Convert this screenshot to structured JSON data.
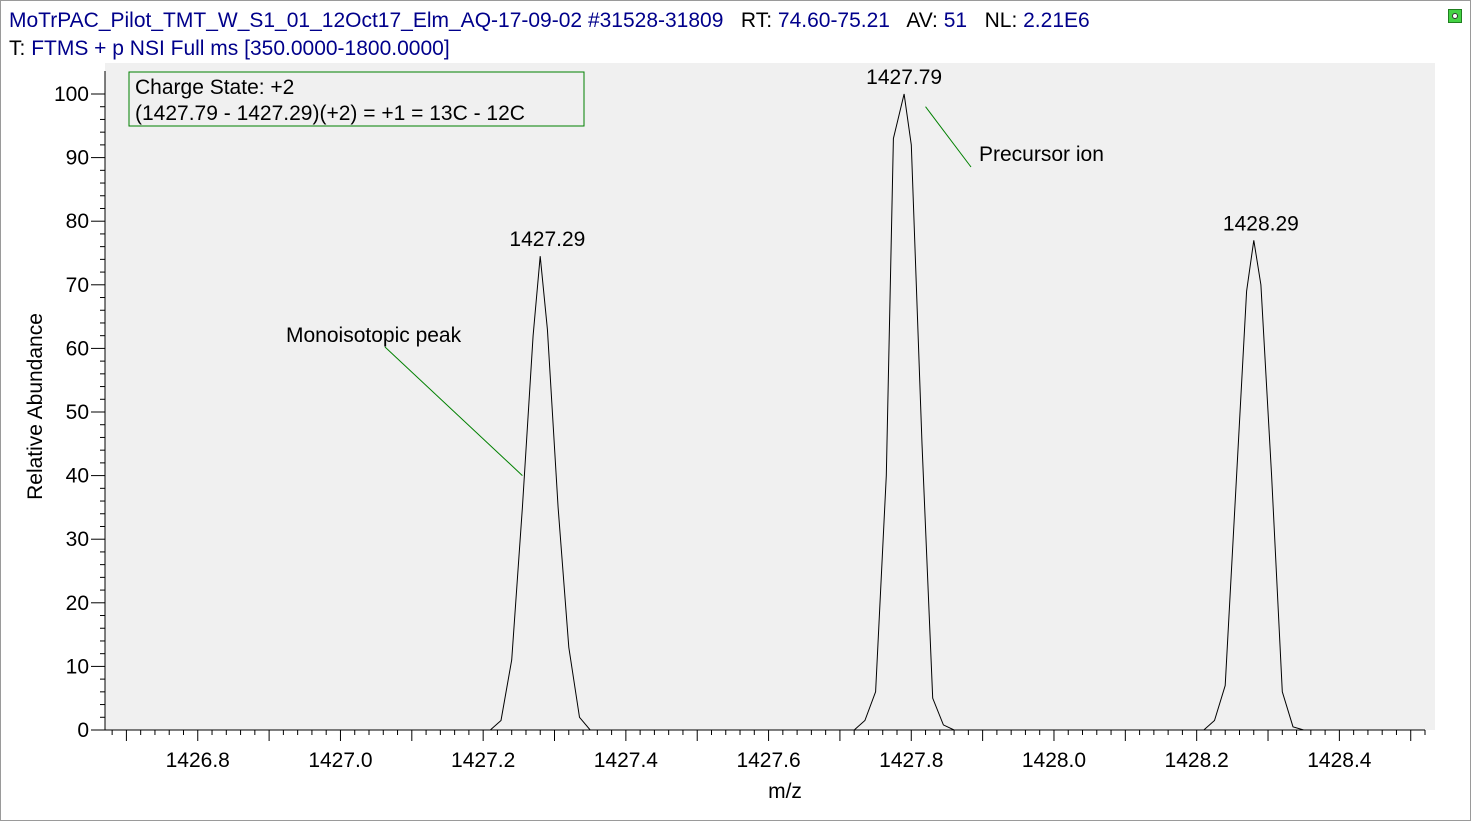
{
  "header": {
    "line1": {
      "filename": "MoTrPAC_Pilot_TMT_W_S1_01_12Oct17_Elm_AQ-17-09-02",
      "scan_range": "#31528-31809",
      "rt_label": "RT:",
      "rt_value": "74.60-75.21",
      "av_label": "AV:",
      "av_value": "51",
      "nl_label": "NL:",
      "nl_value": "2.21E6"
    },
    "line2": {
      "t_label": "T:",
      "t_value": "FTMS + p NSI Full ms [350.0000-1800.0000]"
    }
  },
  "chart_data": {
    "type": "line",
    "xlabel": "m/z",
    "ylabel": "Relative Abundance",
    "xlim": [
      1426.67,
      1428.52
    ],
    "ylim": [
      0,
      100
    ],
    "xticks": [
      "1426.8",
      "1427.0",
      "1427.2",
      "1427.4",
      "1427.6",
      "1427.8",
      "1428.0",
      "1428.2",
      "1428.4"
    ],
    "yticks": [
      "0",
      "10",
      "20",
      "30",
      "40",
      "50",
      "60",
      "70",
      "80",
      "90",
      "100"
    ],
    "grid": false,
    "line_color": "#000000",
    "background_color": "#f0f0f0",
    "annotation_color": "#008000",
    "series": [
      {
        "points": [
          [
            1426.67,
            0
          ],
          [
            1427.21,
            0
          ],
          [
            1427.225,
            1.5
          ],
          [
            1427.24,
            11
          ],
          [
            1427.255,
            35
          ],
          [
            1427.27,
            62
          ],
          [
            1427.28,
            74.5
          ],
          [
            1427.29,
            63
          ],
          [
            1427.305,
            35
          ],
          [
            1427.32,
            13
          ],
          [
            1427.335,
            2
          ],
          [
            1427.35,
            0
          ],
          [
            1427.72,
            0
          ],
          [
            1427.735,
            1.5
          ],
          [
            1427.75,
            6
          ],
          [
            1427.765,
            40
          ],
          [
            1427.775,
            93
          ],
          [
            1427.79,
            100
          ],
          [
            1427.8,
            92
          ],
          [
            1427.815,
            45
          ],
          [
            1427.83,
            5
          ],
          [
            1427.845,
            0.8
          ],
          [
            1427.86,
            0
          ],
          [
            1428.21,
            0
          ],
          [
            1428.225,
            1.5
          ],
          [
            1428.24,
            7
          ],
          [
            1428.255,
            38
          ],
          [
            1428.27,
            69
          ],
          [
            1428.28,
            77
          ],
          [
            1428.29,
            70
          ],
          [
            1428.305,
            40
          ],
          [
            1428.32,
            6
          ],
          [
            1428.335,
            0.5
          ],
          [
            1428.35,
            0
          ],
          [
            1428.52,
            0
          ]
        ]
      }
    ],
    "peak_labels": [
      {
        "x": 1427.29,
        "y": 74.5,
        "text": "1427.29"
      },
      {
        "x": 1427.79,
        "y": 100,
        "text": "1427.79"
      },
      {
        "x": 1428.29,
        "y": 77,
        "text": "1428.29"
      }
    ],
    "callouts": [
      {
        "text": "Monoisotopic peak",
        "target_x": 1427.255,
        "target_y": 40
      },
      {
        "text": "Precursor ion",
        "target_x": 1427.82,
        "target_y": 98
      }
    ],
    "charge_box": {
      "line1": "Charge State: +2",
      "line2": "(1427.79 - 1427.29)(+2) = +1 = 13C - 12C"
    }
  }
}
